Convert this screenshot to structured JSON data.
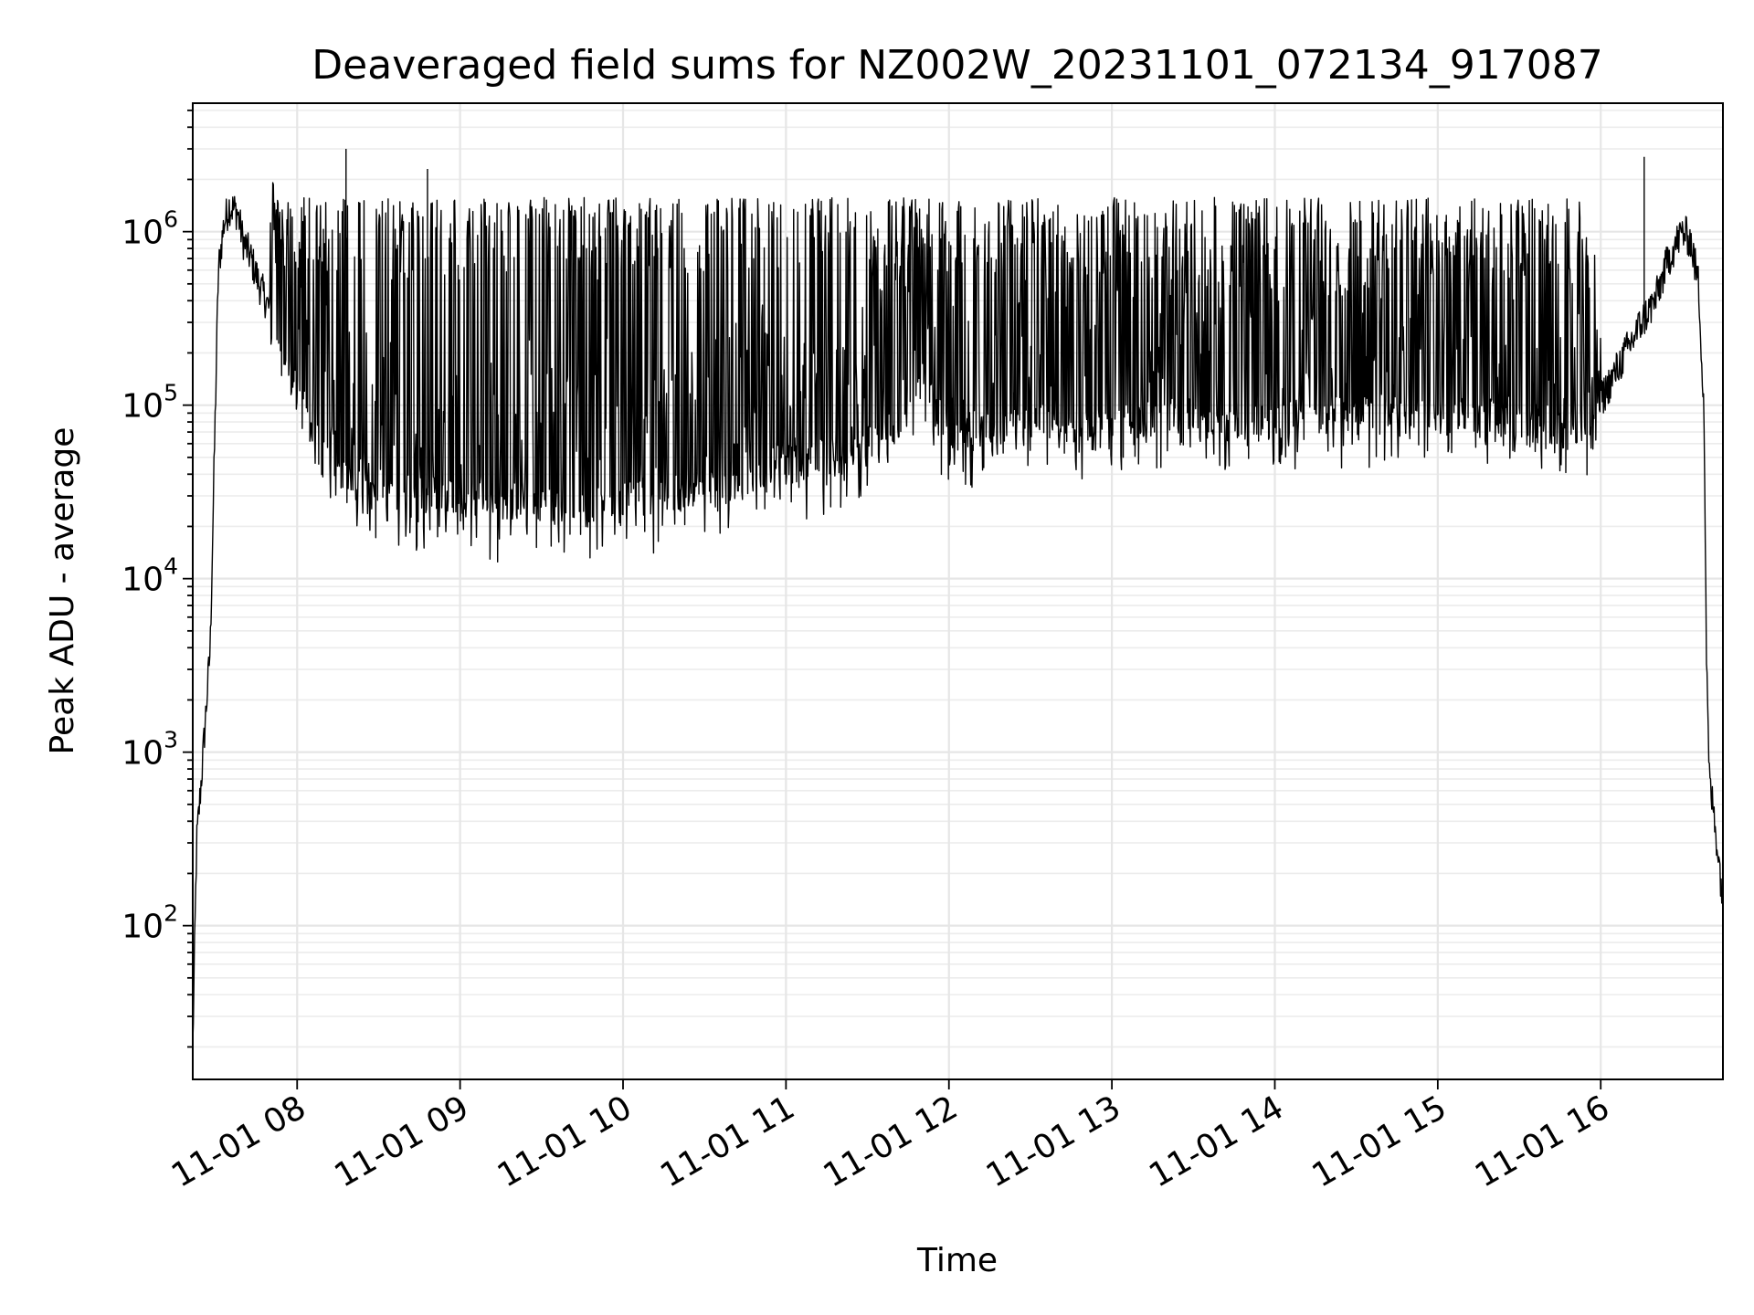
{
  "chart_data": {
    "type": "line",
    "title": "Deaveraged field sums for NZ002W_20231101_072134_917087",
    "xlabel": "Time",
    "ylabel": "Peak ADU - average",
    "yscale": "log",
    "grid": "major+minor",
    "xlim": [
      "2023-11-01T07:21:34",
      "2023-11-01T16:45:00"
    ],
    "ylim": [
      13,
      5500000
    ],
    "x_ticks": [
      {
        "label": "11-01 08",
        "time": "2023-11-01T08:00:00"
      },
      {
        "label": "11-01 09",
        "time": "2023-11-01T09:00:00"
      },
      {
        "label": "11-01 10",
        "time": "2023-11-01T10:00:00"
      },
      {
        "label": "11-01 11",
        "time": "2023-11-01T11:00:00"
      },
      {
        "label": "11-01 12",
        "time": "2023-11-01T12:00:00"
      },
      {
        "label": "11-01 13",
        "time": "2023-11-01T13:00:00"
      },
      {
        "label": "11-01 14",
        "time": "2023-11-01T14:00:00"
      },
      {
        "label": "11-01 15",
        "time": "2023-11-01T15:00:00"
      },
      {
        "label": "11-01 16",
        "time": "2023-11-01T16:00:00"
      }
    ],
    "y_ticks": [
      {
        "base": "10",
        "exp": "2",
        "value": 100
      },
      {
        "base": "10",
        "exp": "3",
        "value": 1000
      },
      {
        "base": "10",
        "exp": "4",
        "value": 10000
      },
      {
        "base": "10",
        "exp": "5",
        "value": 100000
      },
      {
        "base": "10",
        "exp": "6",
        "value": 1000000
      }
    ],
    "series": [
      {
        "color": "#000000",
        "baseline_x": [
          "2023-11-01T07:21:34",
          "2023-11-01T07:23:00",
          "2023-11-01T07:25:00",
          "2023-11-01T07:28:00",
          "2023-11-01T07:31:00",
          "2023-11-01T07:33:00",
          "2023-11-01T07:35:00",
          "2023-11-01T07:38:00",
          "2023-11-01T07:40:00",
          "2023-11-01T07:43:00",
          "2023-11-01T07:46:00",
          "2023-11-01T07:50:00",
          "2023-11-01T07:55:00",
          "2023-11-01T08:00:00",
          "2023-11-01T08:10:00",
          "2023-11-01T08:20:00",
          "2023-11-01T08:35:00",
          "2023-11-01T08:50:00",
          "2023-11-01T09:10:00",
          "2023-11-01T09:30:00",
          "2023-11-01T09:50:00",
          "2023-11-01T10:10:00",
          "2023-11-01T10:30:00",
          "2023-11-01T10:50:00",
          "2023-11-01T11:10:00",
          "2023-11-01T11:30:00",
          "2023-11-01T11:45:00",
          "2023-11-01T11:50:00",
          "2023-11-01T12:00:00",
          "2023-11-01T12:20:00",
          "2023-11-01T12:40:00",
          "2023-11-01T13:00:00",
          "2023-11-01T13:20:00",
          "2023-11-01T13:40:00",
          "2023-11-01T14:00:00",
          "2023-11-01T14:20:00",
          "2023-11-01T14:40:00",
          "2023-11-01T15:00:00",
          "2023-11-01T15:20:00",
          "2023-11-01T15:40:00",
          "2023-11-01T15:55:00",
          "2023-11-01T16:05:00",
          "2023-11-01T16:15:00",
          "2023-11-01T16:20:00",
          "2023-11-01T16:25:00",
          "2023-11-01T16:30:00",
          "2023-11-01T16:33:00",
          "2023-11-01T16:36:00",
          "2023-11-01T16:38:00",
          "2023-11-01T16:39:00",
          "2023-11-01T16:40:00",
          "2023-11-01T16:42:00",
          "2023-11-01T16:44:00",
          "2023-11-01T16:45:00"
        ],
        "baseline_y": [
          20,
          300,
          800,
          4000,
          600000,
          1100000,
          1400000,
          1300000,
          900000,
          700000,
          500000,
          350000,
          200000,
          120000,
          70000,
          40000,
          32000,
          30000,
          28000,
          28000,
          27000,
          30000,
          32000,
          38000,
          50000,
          60000,
          90000,
          150000,
          70000,
          75000,
          85000,
          80000,
          85000,
          85000,
          80000,
          90000,
          95000,
          90000,
          85000,
          70000,
          75000,
          150000,
          300000,
          400000,
          700000,
          1000000,
          900000,
          500000,
          100000,
          3000,
          700,
          400,
          200,
          140
        ],
        "spike_window": [
          "2023-11-01T07:50:00",
          "2023-11-01T16:00:00"
        ],
        "spike_peak": 1500000,
        "outliers": [
          {
            "time": "2023-11-01T08:18:00",
            "value": 3000000
          },
          {
            "time": "2023-11-01T08:48:00",
            "value": 2300000
          },
          {
            "time": "2023-11-01T16:16:00",
            "value": 2700000
          }
        ]
      }
    ]
  }
}
